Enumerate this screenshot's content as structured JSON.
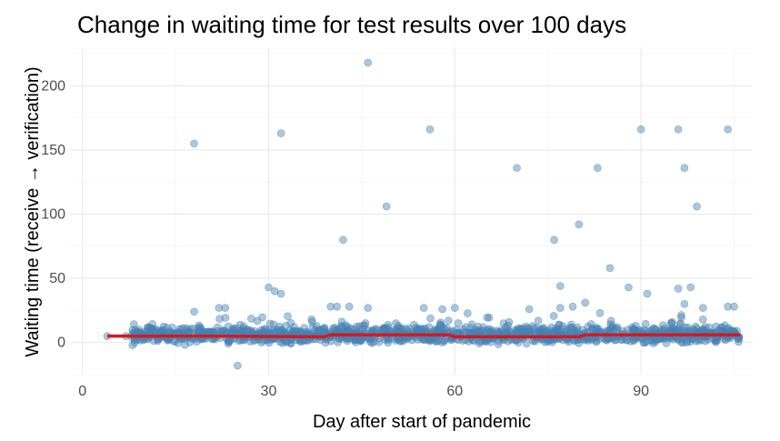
{
  "chart_data": {
    "type": "scatter",
    "title": "Change in waiting time for test results over 100 days",
    "xlabel": "Day after start of pandemic",
    "ylabel": "Waiting time (receive → verification)",
    "xlim": [
      -2,
      108
    ],
    "ylim": [
      -25,
      230
    ],
    "xticks": [
      0,
      30,
      60,
      90
    ],
    "yticks": [
      0,
      50,
      100,
      150,
      200
    ],
    "grid": true,
    "point_color": "#4682b4",
    "trend_color": "#d7191c",
    "outliers": [
      {
        "x": 18,
        "y": 155
      },
      {
        "x": 32,
        "y": 163
      },
      {
        "x": 46,
        "y": 218
      },
      {
        "x": 56,
        "y": 166
      },
      {
        "x": 49,
        "y": 106
      },
      {
        "x": 42,
        "y": 80
      },
      {
        "x": 70,
        "y": 136
      },
      {
        "x": 90,
        "y": 166
      },
      {
        "x": 96,
        "y": 166
      },
      {
        "x": 104,
        "y": 166
      },
      {
        "x": 97,
        "y": 136
      },
      {
        "x": 83,
        "y": 136
      },
      {
        "x": 99,
        "y": 106
      },
      {
        "x": 80,
        "y": 92
      },
      {
        "x": 76,
        "y": 80
      },
      {
        "x": 85,
        "y": 58
      },
      {
        "x": 30,
        "y": 43
      },
      {
        "x": 31,
        "y": 40
      },
      {
        "x": 32,
        "y": 38
      },
      {
        "x": 77,
        "y": 44
      },
      {
        "x": 88,
        "y": 43
      },
      {
        "x": 96,
        "y": 42
      },
      {
        "x": 98,
        "y": 43
      },
      {
        "x": 91,
        "y": 38
      },
      {
        "x": 25,
        "y": -18
      },
      {
        "x": 4,
        "y": 5
      },
      {
        "x": 7,
        "y": 5
      },
      {
        "x": 8,
        "y": 6
      },
      {
        "x": 18,
        "y": 24
      },
      {
        "x": 22,
        "y": 27
      },
      {
        "x": 23,
        "y": 27
      },
      {
        "x": 40,
        "y": 28
      },
      {
        "x": 41,
        "y": 28
      },
      {
        "x": 43,
        "y": 28
      },
      {
        "x": 46,
        "y": 27
      },
      {
        "x": 55,
        "y": 27
      },
      {
        "x": 58,
        "y": 26
      },
      {
        "x": 60,
        "y": 27
      },
      {
        "x": 72,
        "y": 26
      },
      {
        "x": 77,
        "y": 27
      },
      {
        "x": 79,
        "y": 28
      },
      {
        "x": 81,
        "y": 31
      },
      {
        "x": 97,
        "y": 30
      },
      {
        "x": 100,
        "y": 27
      },
      {
        "x": 104,
        "y": 28
      },
      {
        "x": 105,
        "y": 28
      }
    ],
    "trend": [
      {
        "x": 4,
        "y": 5
      },
      {
        "x": 20,
        "y": 5
      },
      {
        "x": 39,
        "y": 4.5
      },
      {
        "x": 40,
        "y": 6
      },
      {
        "x": 59,
        "y": 6
      },
      {
        "x": 60,
        "y": 4.5
      },
      {
        "x": 80,
        "y": 4.5
      },
      {
        "x": 81,
        "y": 6
      },
      {
        "x": 106,
        "y": 6
      }
    ],
    "bulk": {
      "x_from": 8,
      "x_to": 106,
      "y_center": 6,
      "y_spread": 7
    }
  }
}
